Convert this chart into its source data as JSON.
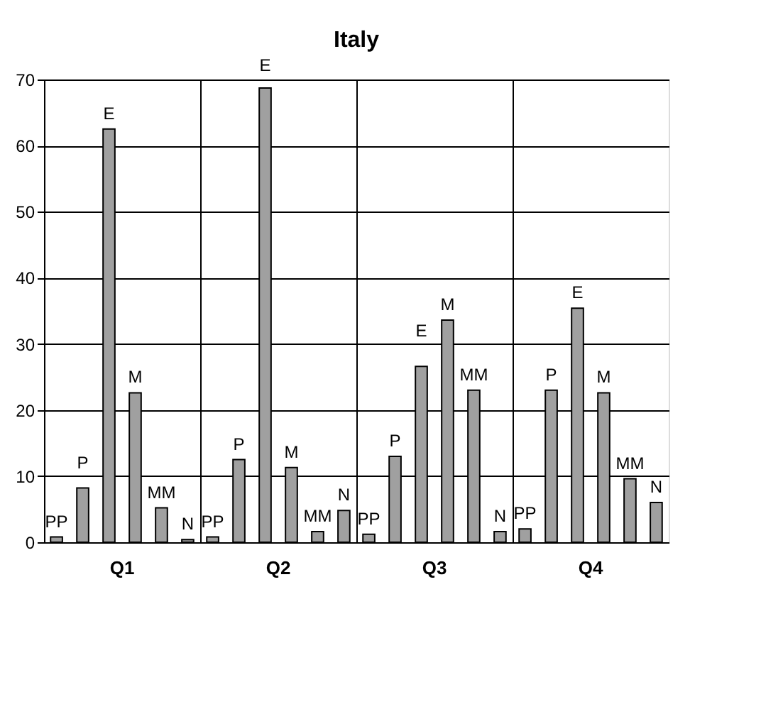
{
  "chart_data": {
    "type": "bar",
    "title": "Italy",
    "categories": [
      "Q1",
      "Q2",
      "Q3",
      "Q4"
    ],
    "series": [
      {
        "name": "PP",
        "color": "#a0a0a0",
        "values": [
          0.8,
          0.8,
          1.2,
          2
        ]
      },
      {
        "name": "P",
        "color": "#a0a0a0",
        "values": [
          8.2,
          12.5,
          13,
          23
        ]
      },
      {
        "name": "E",
        "color": "#a0a0a0",
        "values": [
          62.5,
          68.7,
          26.6,
          35.4
        ]
      },
      {
        "name": "M",
        "color": "#a0a0a0",
        "values": [
          22.6,
          11.3,
          33.6,
          22.6
        ]
      },
      {
        "name": "MM",
        "color": "#a0a0a0",
        "values": [
          5.2,
          1.6,
          23,
          9.6
        ]
      },
      {
        "name": "N",
        "color": "#a0a0a0",
        "values": [
          0.4,
          4.8,
          1.6,
          6
        ]
      }
    ],
    "ylim": [
      0,
      70
    ],
    "yticks": [
      0,
      10,
      20,
      30,
      40,
      50,
      60,
      70
    ],
    "grid": true
  }
}
